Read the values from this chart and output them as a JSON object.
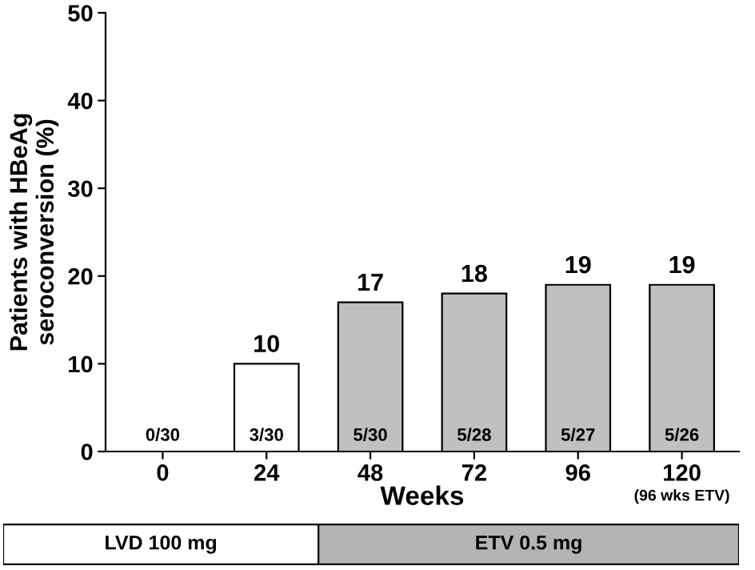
{
  "chart_data": {
    "type": "bar",
    "xlabel": "Weeks",
    "ylabel": "Patients with HBeAg\nseroconversion (%)",
    "categories": [
      "0",
      "24",
      "48",
      "72",
      "96",
      "120"
    ],
    "values": [
      0,
      10,
      17,
      18,
      19,
      19
    ],
    "colors": [
      "#ffffff",
      "#ffffff",
      "#c0c0c0",
      "#c0c0c0",
      "#c0c0c0",
      "#c0c0c0"
    ],
    "value_labels": [
      null,
      "10",
      "17",
      "18",
      "19",
      "19"
    ],
    "ylim": [
      0,
      50
    ],
    "yticks": [
      0,
      10,
      20,
      30,
      40,
      50
    ],
    "grid": false,
    "legend": false,
    "annotations": [
      "0/30",
      "3/30",
      "5/30",
      "5/28",
      "5/27",
      "5/26",
      "(96 wks ETV)",
      "LVD 100 mg",
      "ETV 0.5 mg"
    ]
  }
}
